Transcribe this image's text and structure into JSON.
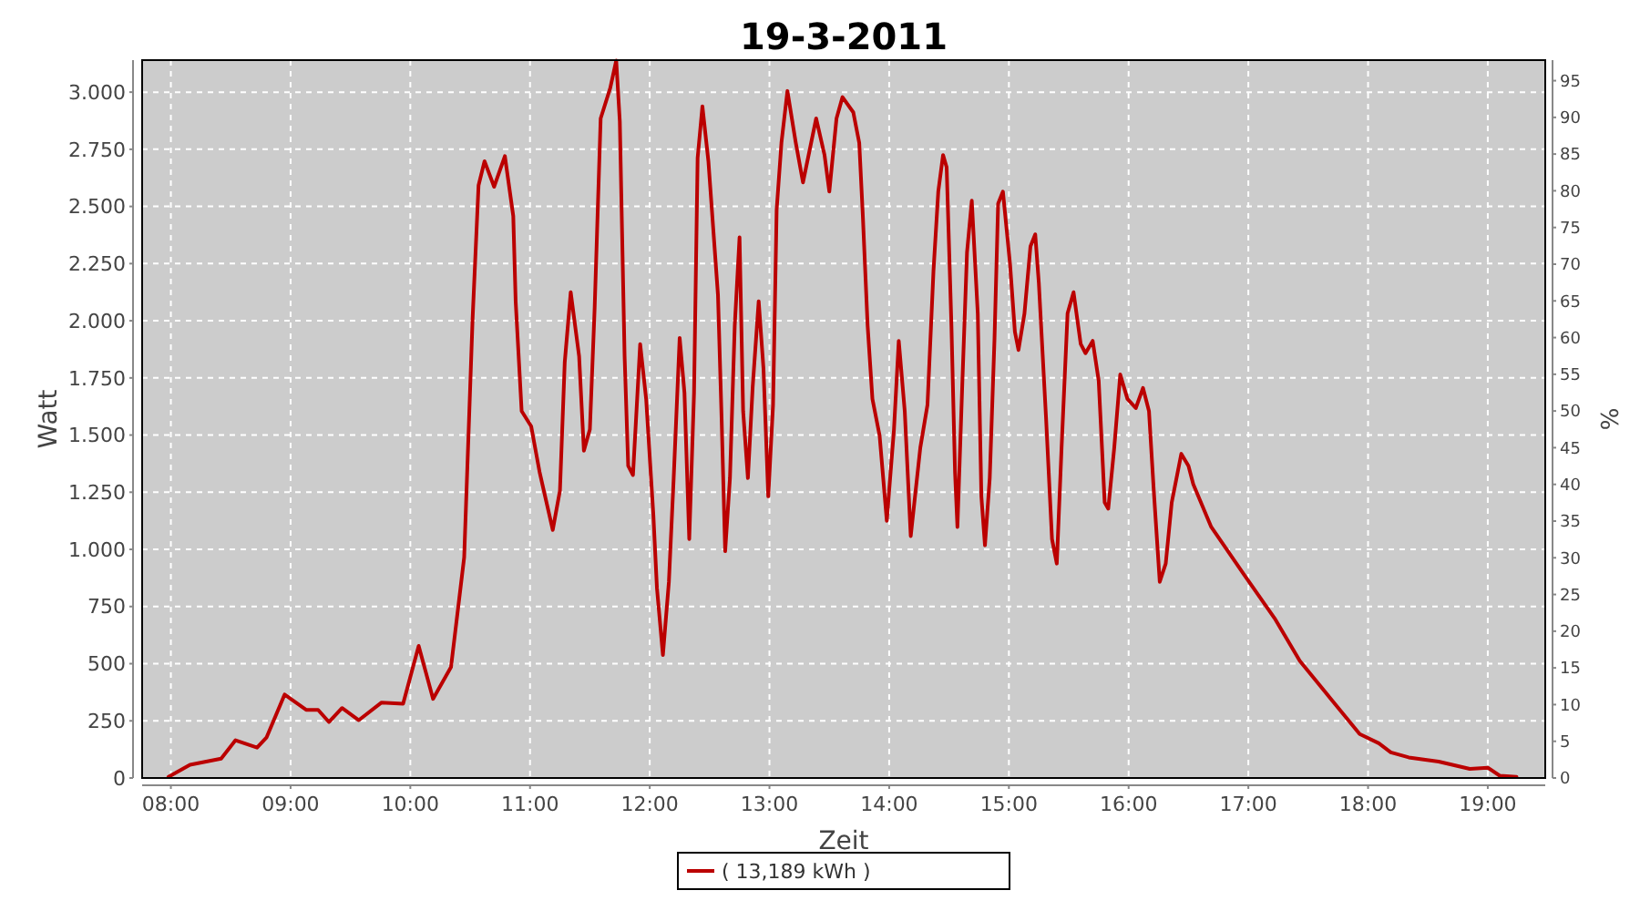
{
  "chart_data": {
    "type": "line",
    "title": "19-3-2011",
    "xlabel": "Zeit",
    "ylabel": "Watt",
    "y2label": "%",
    "x": [
      7.98,
      8.16,
      8.42,
      8.54,
      8.72,
      8.8,
      8.95,
      9.13,
      9.23,
      9.32,
      9.43,
      9.57,
      9.76,
      9.94,
      10.07,
      10.19,
      10.34,
      10.45,
      10.52,
      10.57,
      10.62,
      10.7,
      10.79,
      10.86,
      10.88,
      10.93,
      11.01,
      11.08,
      11.19,
      11.25,
      11.29,
      11.34,
      11.41,
      11.45,
      11.5,
      11.54,
      11.59,
      11.67,
      11.72,
      11.75,
      11.79,
      11.82,
      11.86,
      11.92,
      11.97,
      12.03,
      12.06,
      12.11,
      12.16,
      12.2,
      12.25,
      12.29,
      12.33,
      12.37,
      12.4,
      12.44,
      12.49,
      12.57,
      12.6,
      12.63,
      12.67,
      12.71,
      12.75,
      12.78,
      12.82,
      12.86,
      12.91,
      12.95,
      12.99,
      13.03,
      13.06,
      13.1,
      13.15,
      13.22,
      13.28,
      13.39,
      13.46,
      13.5,
      13.56,
      13.61,
      13.7,
      13.75,
      13.78,
      13.82,
      13.86,
      13.92,
      13.98,
      14.04,
      14.08,
      14.13,
      14.18,
      14.26,
      14.32,
      14.37,
      14.41,
      14.45,
      14.48,
      14.52,
      14.55,
      14.57,
      14.61,
      14.65,
      14.69,
      14.74,
      14.77,
      14.8,
      14.84,
      14.88,
      14.91,
      14.95,
      15.01,
      15.05,
      15.08,
      15.13,
      15.18,
      15.22,
      15.25,
      15.31,
      15.36,
      15.4,
      15.44,
      15.49,
      15.54,
      15.6,
      15.64,
      15.7,
      15.75,
      15.8,
      15.83,
      15.88,
      15.93,
      15.99,
      16.06,
      16.12,
      16.17,
      16.21,
      16.26,
      16.31,
      16.36,
      16.44,
      16.5,
      16.54,
      16.69,
      16.97,
      17.22,
      17.43,
      17.68,
      17.93,
      18.09,
      18.19,
      18.34,
      18.59,
      18.85,
      19.0,
      19.1,
      19.24
    ],
    "series": [
      {
        "name": "( 13,189 kWh )",
        "color": "#bb0000",
        "values": [
          5,
          58,
          85,
          165,
          133,
          178,
          365,
          298,
          298,
          245,
          306,
          253,
          330,
          325,
          578,
          346,
          485,
          965,
          2005,
          2592,
          2698,
          2586,
          2720,
          2458,
          2085,
          1605,
          1538,
          1338,
          1085,
          1258,
          1818,
          2125,
          1845,
          1432,
          1525,
          2058,
          2885,
          3018,
          3138,
          2872,
          1845,
          1365,
          1325,
          1898,
          1658,
          1152,
          832,
          538,
          858,
          1312,
          1925,
          1685,
          1045,
          1685,
          2712,
          2938,
          2698,
          2112,
          1578,
          992,
          1312,
          1978,
          2365,
          1605,
          1312,
          1712,
          2085,
          1792,
          1232,
          1632,
          2485,
          2778,
          3005,
          2778,
          2605,
          2885,
          2725,
          2565,
          2885,
          2978,
          2912,
          2778,
          2458,
          1978,
          1658,
          1498,
          1125,
          1525,
          1912,
          1605,
          1058,
          1445,
          1632,
          2218,
          2565,
          2725,
          2672,
          1978,
          1338,
          1098,
          1712,
          2298,
          2525,
          2032,
          1232,
          1018,
          1312,
          1925,
          2512,
          2565,
          2245,
          1952,
          1872,
          2032,
          2325,
          2378,
          2165,
          1578,
          1045,
          938,
          1445,
          2032,
          2125,
          1898,
          1858,
          1912,
          1738,
          1205,
          1178,
          1445,
          1765,
          1658,
          1618,
          1706,
          1605,
          1258,
          858,
          938,
          1205,
          1418,
          1365,
          1285,
          1098,
          885,
          698,
          512,
          352,
          192,
          152,
          112,
          90,
          72,
          40,
          45,
          10,
          5
        ]
      }
    ],
    "xlim": [
      7.76,
      19.48
    ],
    "xticks": [
      {
        "value": 8,
        "label": "08:00"
      },
      {
        "value": 9,
        "label": "09:00"
      },
      {
        "value": 10,
        "label": "10:00"
      },
      {
        "value": 11,
        "label": "11:00"
      },
      {
        "value": 12,
        "label": "12:00"
      },
      {
        "value": 13,
        "label": "13:00"
      },
      {
        "value": 14,
        "label": "14:00"
      },
      {
        "value": 15,
        "label": "15:00"
      },
      {
        "value": 16,
        "label": "16:00"
      },
      {
        "value": 17,
        "label": "17:00"
      },
      {
        "value": 18,
        "label": "18:00"
      },
      {
        "value": 19,
        "label": "19:00"
      }
    ],
    "ylim": [
      0,
      3140
    ],
    "yticks": [
      0,
      250,
      500,
      750,
      {
        "value": 1000,
        "label": "1.000"
      },
      {
        "value": 1250,
        "label": "1.250"
      },
      {
        "value": 1500,
        "label": "1.500"
      },
      {
        "value": 1750,
        "label": "1.750"
      },
      {
        "value": 2000,
        "label": "2.000"
      },
      {
        "value": 2250,
        "label": "2.250"
      },
      {
        "value": 2500,
        "label": "2.500"
      },
      {
        "value": 2750,
        "label": "2.750"
      },
      {
        "value": 3000,
        "label": "3.000"
      }
    ],
    "y2lim": [
      0,
      97.8
    ],
    "y2ticks": [
      0,
      5,
      10,
      15,
      20,
      25,
      30,
      35,
      40,
      45,
      50,
      55,
      60,
      65,
      70,
      75,
      80,
      85,
      90,
      95
    ],
    "grid": true,
    "legend": "bottom",
    "line_style": "solid",
    "marker": "none"
  }
}
